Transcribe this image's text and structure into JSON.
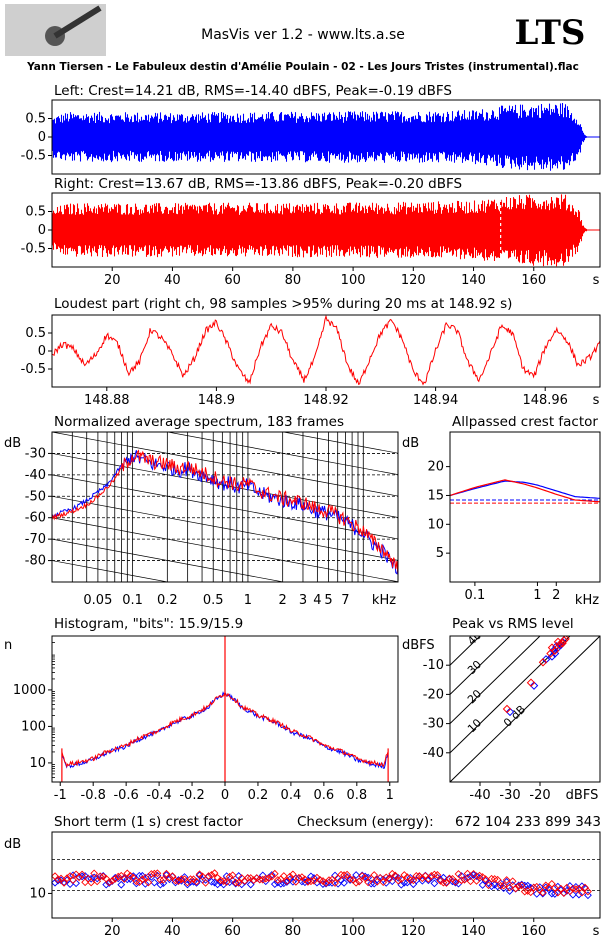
{
  "header": {
    "app_title": "MasVis ver 1.2 - www.lts.a.se",
    "brand": "LTS",
    "track_title": "Yann Tiersen - Le Fabuleux destin d'Amélie Poulain - 02 - Les Jours Tristes (instrumental).flac"
  },
  "colors": {
    "left": "#0000ff",
    "right": "#ff0000",
    "grid": "#000000",
    "frame": "#000000"
  },
  "chart_data": [
    {
      "id": "left-waveform",
      "type": "area",
      "title": "Left: Crest=14.21 dB, RMS=-14.40 dBFS, Peak=-0.19 dBFS",
      "channel": "left",
      "xlim": [
        0,
        182
      ],
      "ylim": [
        -1,
        1
      ],
      "yticks": [
        0.5,
        0,
        -0.5
      ],
      "ytick_labels": [
        "0.5",
        "0",
        "-0.5"
      ],
      "x": [
        0,
        2,
        5,
        10,
        20,
        40,
        60,
        80,
        100,
        120,
        140,
        150,
        160,
        170,
        175,
        176,
        177,
        178,
        182
      ],
      "envelope": [
        0.55,
        0.62,
        0.68,
        0.68,
        0.68,
        0.67,
        0.68,
        0.69,
        0.7,
        0.71,
        0.74,
        0.86,
        0.92,
        0.95,
        0.55,
        0.2,
        0.05,
        0,
        0
      ]
    },
    {
      "id": "right-waveform",
      "type": "area",
      "title": "Right: Crest=13.67 dB, RMS=-13.86 dBFS, Peak=-0.20 dBFS",
      "channel": "right",
      "xlim": [
        0,
        182
      ],
      "ylim": [
        -1,
        1
      ],
      "yticks": [
        0.5,
        0,
        -0.5
      ],
      "ytick_labels": [
        "0.5",
        "0",
        "-0.5"
      ],
      "x": [
        0,
        2,
        5,
        10,
        20,
        40,
        60,
        80,
        100,
        120,
        140,
        150,
        160,
        170,
        175,
        176,
        177,
        178,
        182
      ],
      "envelope": [
        0.55,
        0.65,
        0.72,
        0.74,
        0.74,
        0.73,
        0.74,
        0.74,
        0.75,
        0.77,
        0.8,
        0.93,
        0.97,
        0.99,
        0.55,
        0.2,
        0.05,
        0,
        0
      ],
      "marker_x": 149,
      "xticks": [
        20,
        40,
        60,
        80,
        100,
        120,
        140,
        160
      ],
      "xtick_labels": [
        "20",
        "40",
        "60",
        "80",
        "100",
        "120",
        "140",
        "160"
      ],
      "xunit": "s"
    },
    {
      "id": "loudest-part",
      "type": "line",
      "title": "Loudest part (right ch, 98 samples >95% during 20 ms at 148.92 s)",
      "xlim": [
        148.87,
        148.97
      ],
      "ylim": [
        -1,
        1
      ],
      "yticks": [
        0.5,
        0,
        -0.5
      ],
      "ytick_labels": [
        "0.5",
        "0",
        "-0.5"
      ],
      "xticks": [
        148.88,
        148.9,
        148.92,
        148.94,
        148.96
      ],
      "xtick_labels": [
        "148.88",
        "148.9",
        "148.92",
        "148.94",
        "148.96"
      ],
      "xunit": "s",
      "x": [
        148.87,
        148.872,
        148.874,
        148.876,
        148.878,
        148.88,
        148.882,
        148.884,
        148.886,
        148.888,
        148.89,
        148.892,
        148.894,
        148.896,
        148.898,
        148.9,
        148.902,
        148.904,
        148.906,
        148.908,
        148.91,
        148.912,
        148.914,
        148.916,
        148.918,
        148.92,
        148.922,
        148.924,
        148.926,
        148.928,
        148.93,
        148.932,
        148.934,
        148.936,
        148.938,
        148.94,
        148.942,
        148.944,
        148.946,
        148.948,
        148.95,
        148.952,
        148.954,
        148.956,
        148.958,
        148.96,
        148.962,
        148.964,
        148.966,
        148.968,
        148.97
      ],
      "y": [
        -0.1,
        0.2,
        0.05,
        -0.4,
        -0.1,
        0.45,
        0.2,
        -0.6,
        -0.3,
        0.6,
        0.35,
        -0.1,
        -0.7,
        -0.2,
        0.55,
        0.8,
        0.2,
        -0.5,
        -0.9,
        0.1,
        0.7,
        0.5,
        -0.3,
        -0.8,
        -0.2,
        0.9,
        0.6,
        -0.4,
        -0.95,
        -0.2,
        0.5,
        0.85,
        0.3,
        -0.6,
        -0.9,
        0.0,
        0.75,
        0.55,
        -0.35,
        -0.8,
        -0.1,
        0.7,
        0.5,
        -0.5,
        -0.7,
        0.1,
        0.6,
        0.3,
        -0.4,
        -0.2,
        0.2
      ]
    },
    {
      "id": "average-spectrum",
      "type": "line",
      "title": "Normalized average spectrum, 183 frames",
      "xscale": "log",
      "xlim": [
        0.02,
        20
      ],
      "ylim": [
        -90,
        -20
      ],
      "ylabel": "dB",
      "xunit": "kHz",
      "yticks": [
        -30,
        -40,
        -50,
        -60,
        -70,
        -80
      ],
      "ytick_labels": [
        "-30",
        "-40",
        "-50",
        "-60",
        "-70",
        "-80"
      ],
      "xticks": [
        0.05,
        0.1,
        0.2,
        0.5,
        1,
        2,
        3,
        4,
        5,
        7
      ],
      "xtick_labels": [
        "0.05",
        "0.1",
        "0.2",
        "0.5",
        "1",
        "2",
        "3",
        "4",
        "5",
        "7"
      ],
      "series": [
        {
          "channel": "left",
          "x": [
            0.02,
            0.03,
            0.04,
            0.05,
            0.06,
            0.07,
            0.08,
            0.09,
            0.1,
            0.12,
            0.15,
            0.2,
            0.25,
            0.3,
            0.4,
            0.5,
            0.6,
            0.7,
            0.8,
            1,
            1.2,
            1.5,
            2,
            2.5,
            3,
            4,
            5,
            6,
            7,
            8,
            10,
            12,
            15,
            18,
            20
          ],
          "y": [
            -59,
            -56,
            -52,
            -48,
            -45,
            -40,
            -36,
            -34,
            -31,
            -33,
            -35,
            -36,
            -38,
            -37,
            -40,
            -42,
            -44,
            -44,
            -46,
            -45,
            -48,
            -50,
            -52,
            -53,
            -54,
            -57,
            -58,
            -60,
            -62,
            -64,
            -67,
            -72,
            -76,
            -82,
            -85
          ]
        },
        {
          "channel": "right",
          "x": [
            0.02,
            0.03,
            0.04,
            0.05,
            0.06,
            0.07,
            0.08,
            0.09,
            0.1,
            0.12,
            0.15,
            0.2,
            0.25,
            0.3,
            0.4,
            0.5,
            0.6,
            0.7,
            0.8,
            1,
            1.2,
            1.5,
            2,
            2.5,
            3,
            4,
            5,
            6,
            7,
            8,
            10,
            12,
            15,
            18,
            20
          ],
          "y": [
            -60,
            -57,
            -54,
            -50,
            -46,
            -42,
            -37,
            -34,
            -31,
            -32,
            -34,
            -35,
            -37,
            -36,
            -39,
            -41,
            -43,
            -43,
            -45,
            -44,
            -47,
            -49,
            -51,
            -52,
            -53,
            -56,
            -57,
            -59,
            -61,
            -63,
            -66,
            -71,
            -75,
            -80,
            -84
          ]
        }
      ]
    },
    {
      "id": "allpassed-crest",
      "type": "line",
      "title": "Allpassed crest factor",
      "xscale": "log",
      "xlim": [
        0.04,
        10
      ],
      "ylim": [
        0,
        26
      ],
      "ylabel": "dB",
      "xunit": "kHz",
      "yticks": [
        5,
        10,
        15,
        20
      ],
      "ytick_labels": [
        "5",
        "10",
        "15",
        "20"
      ],
      "xticks": [
        0.1,
        1,
        2
      ],
      "xtick_labels": [
        "0.1",
        "1",
        "2"
      ],
      "series": [
        {
          "channel": "left",
          "x": [
            0.04,
            0.1,
            0.3,
            0.6,
            1,
            2,
            4,
            10
          ],
          "y": [
            15,
            16.2,
            17.5,
            17.3,
            16.8,
            15.8,
            14.8,
            14.5
          ],
          "reference": 14.21
        },
        {
          "channel": "right",
          "x": [
            0.04,
            0.1,
            0.3,
            0.6,
            1,
            2,
            4,
            10
          ],
          "y": [
            15,
            16.4,
            17.7,
            17,
            16.3,
            15.2,
            14.2,
            13.9
          ],
          "reference": 13.67
        }
      ]
    },
    {
      "id": "histogram",
      "type": "line",
      "title": "Histogram, \"bits\": 15.9/15.9",
      "yscale": "log",
      "xlim": [
        -1.05,
        1.05
      ],
      "ylim": [
        3,
        30000
      ],
      "ylabel": "n",
      "yticks": [
        10,
        100,
        1000
      ],
      "ytick_labels": [
        "10",
        "100",
        "1000"
      ],
      "xticks": [
        -1,
        -0.8,
        -0.6,
        -0.4,
        -0.2,
        0,
        0.2,
        0.4,
        0.6,
        0.8,
        1
      ],
      "xtick_labels": [
        "-1",
        "-0.8",
        "-0.6",
        "-0.4",
        "-0.2",
        "0",
        "0.2",
        "0.4",
        "0.6",
        "0.8",
        "1"
      ],
      "series": [
        {
          "channel": "left",
          "x": [
            -0.99,
            -0.97,
            -0.9,
            -0.8,
            -0.6,
            -0.4,
            -0.2,
            -0.1,
            0,
            0.1,
            0.2,
            0.4,
            0.6,
            0.8,
            0.9,
            0.97,
            0.99
          ],
          "y": [
            20,
            8,
            9,
            12,
            28,
            70,
            190,
            330,
            800,
            330,
            190,
            70,
            28,
            12,
            9,
            8,
            20
          ]
        },
        {
          "channel": "right",
          "x": [
            -0.99,
            -0.97,
            -0.9,
            -0.8,
            -0.6,
            -0.4,
            -0.2,
            -0.1,
            0,
            0.1,
            0.2,
            0.4,
            0.6,
            0.8,
            0.9,
            0.97,
            0.99
          ],
          "y": [
            22,
            9,
            10,
            13,
            30,
            75,
            200,
            350,
            820,
            350,
            200,
            75,
            30,
            13,
            10,
            9,
            22
          ]
        }
      ]
    },
    {
      "id": "peak-vs-rms",
      "type": "scatter",
      "title": "Peak vs RMS level",
      "xlim": [
        -50,
        0
      ],
      "ylim": [
        -50,
        0
      ],
      "ylabel": "dBFS",
      "xunit": "dBFS",
      "xticks": [
        -40,
        -30,
        -20
      ],
      "xtick_labels": [
        "-40",
        "-30",
        "-20"
      ],
      "yticks": [
        -10,
        -20,
        -30,
        -40
      ],
      "ytick_labels": [
        "-10",
        "-20",
        "-30",
        "-40"
      ],
      "diagonal_labels": [
        "40",
        "30",
        "20",
        "10",
        "0 dB"
      ],
      "diagonal_offsets": [
        40,
        30,
        20,
        10,
        0
      ],
      "series": [
        {
          "channel": "left",
          "x": [
            -30,
            -22,
            -18,
            -16,
            -15,
            -14,
            -13,
            -12.5,
            -12,
            -15.5,
            -14.5
          ],
          "y": [
            -26,
            -17,
            -8,
            -7,
            -6,
            -4,
            -3,
            -2,
            -1.5,
            -5,
            -3.5
          ]
        },
        {
          "channel": "right",
          "x": [
            -31,
            -23,
            -19,
            -16.5,
            -15,
            -13.5,
            -12.5,
            -12,
            -11.5,
            -16,
            -14
          ],
          "y": [
            -25,
            -16,
            -9,
            -6,
            -5,
            -3,
            -2.5,
            -1.5,
            -1,
            -4,
            -2
          ]
        }
      ]
    },
    {
      "id": "short-term-crest",
      "type": "scatter",
      "title": "Short term (1 s) crest factor",
      "checksum_label": "Checksum (energy):",
      "checksum_value": "672 104 233 899 343",
      "xlim": [
        0,
        182
      ],
      "ylim": [
        6,
        20
      ],
      "ylabel": "dB",
      "yticks": [
        10
      ],
      "ytick_labels": [
        "10"
      ],
      "ref_lines": [
        10.5,
        15.5
      ],
      "xticks": [
        20,
        40,
        60,
        80,
        100,
        120,
        140,
        160
      ],
      "xtick_labels": [
        "20",
        "40",
        "60",
        "80",
        "100",
        "120",
        "140",
        "160"
      ],
      "xunit": "s",
      "series": [
        {
          "channel": "left",
          "baseline": 12.2,
          "end_level": 10.5
        },
        {
          "channel": "right",
          "baseline": 12.5,
          "end_level": 10.8
        }
      ]
    }
  ]
}
